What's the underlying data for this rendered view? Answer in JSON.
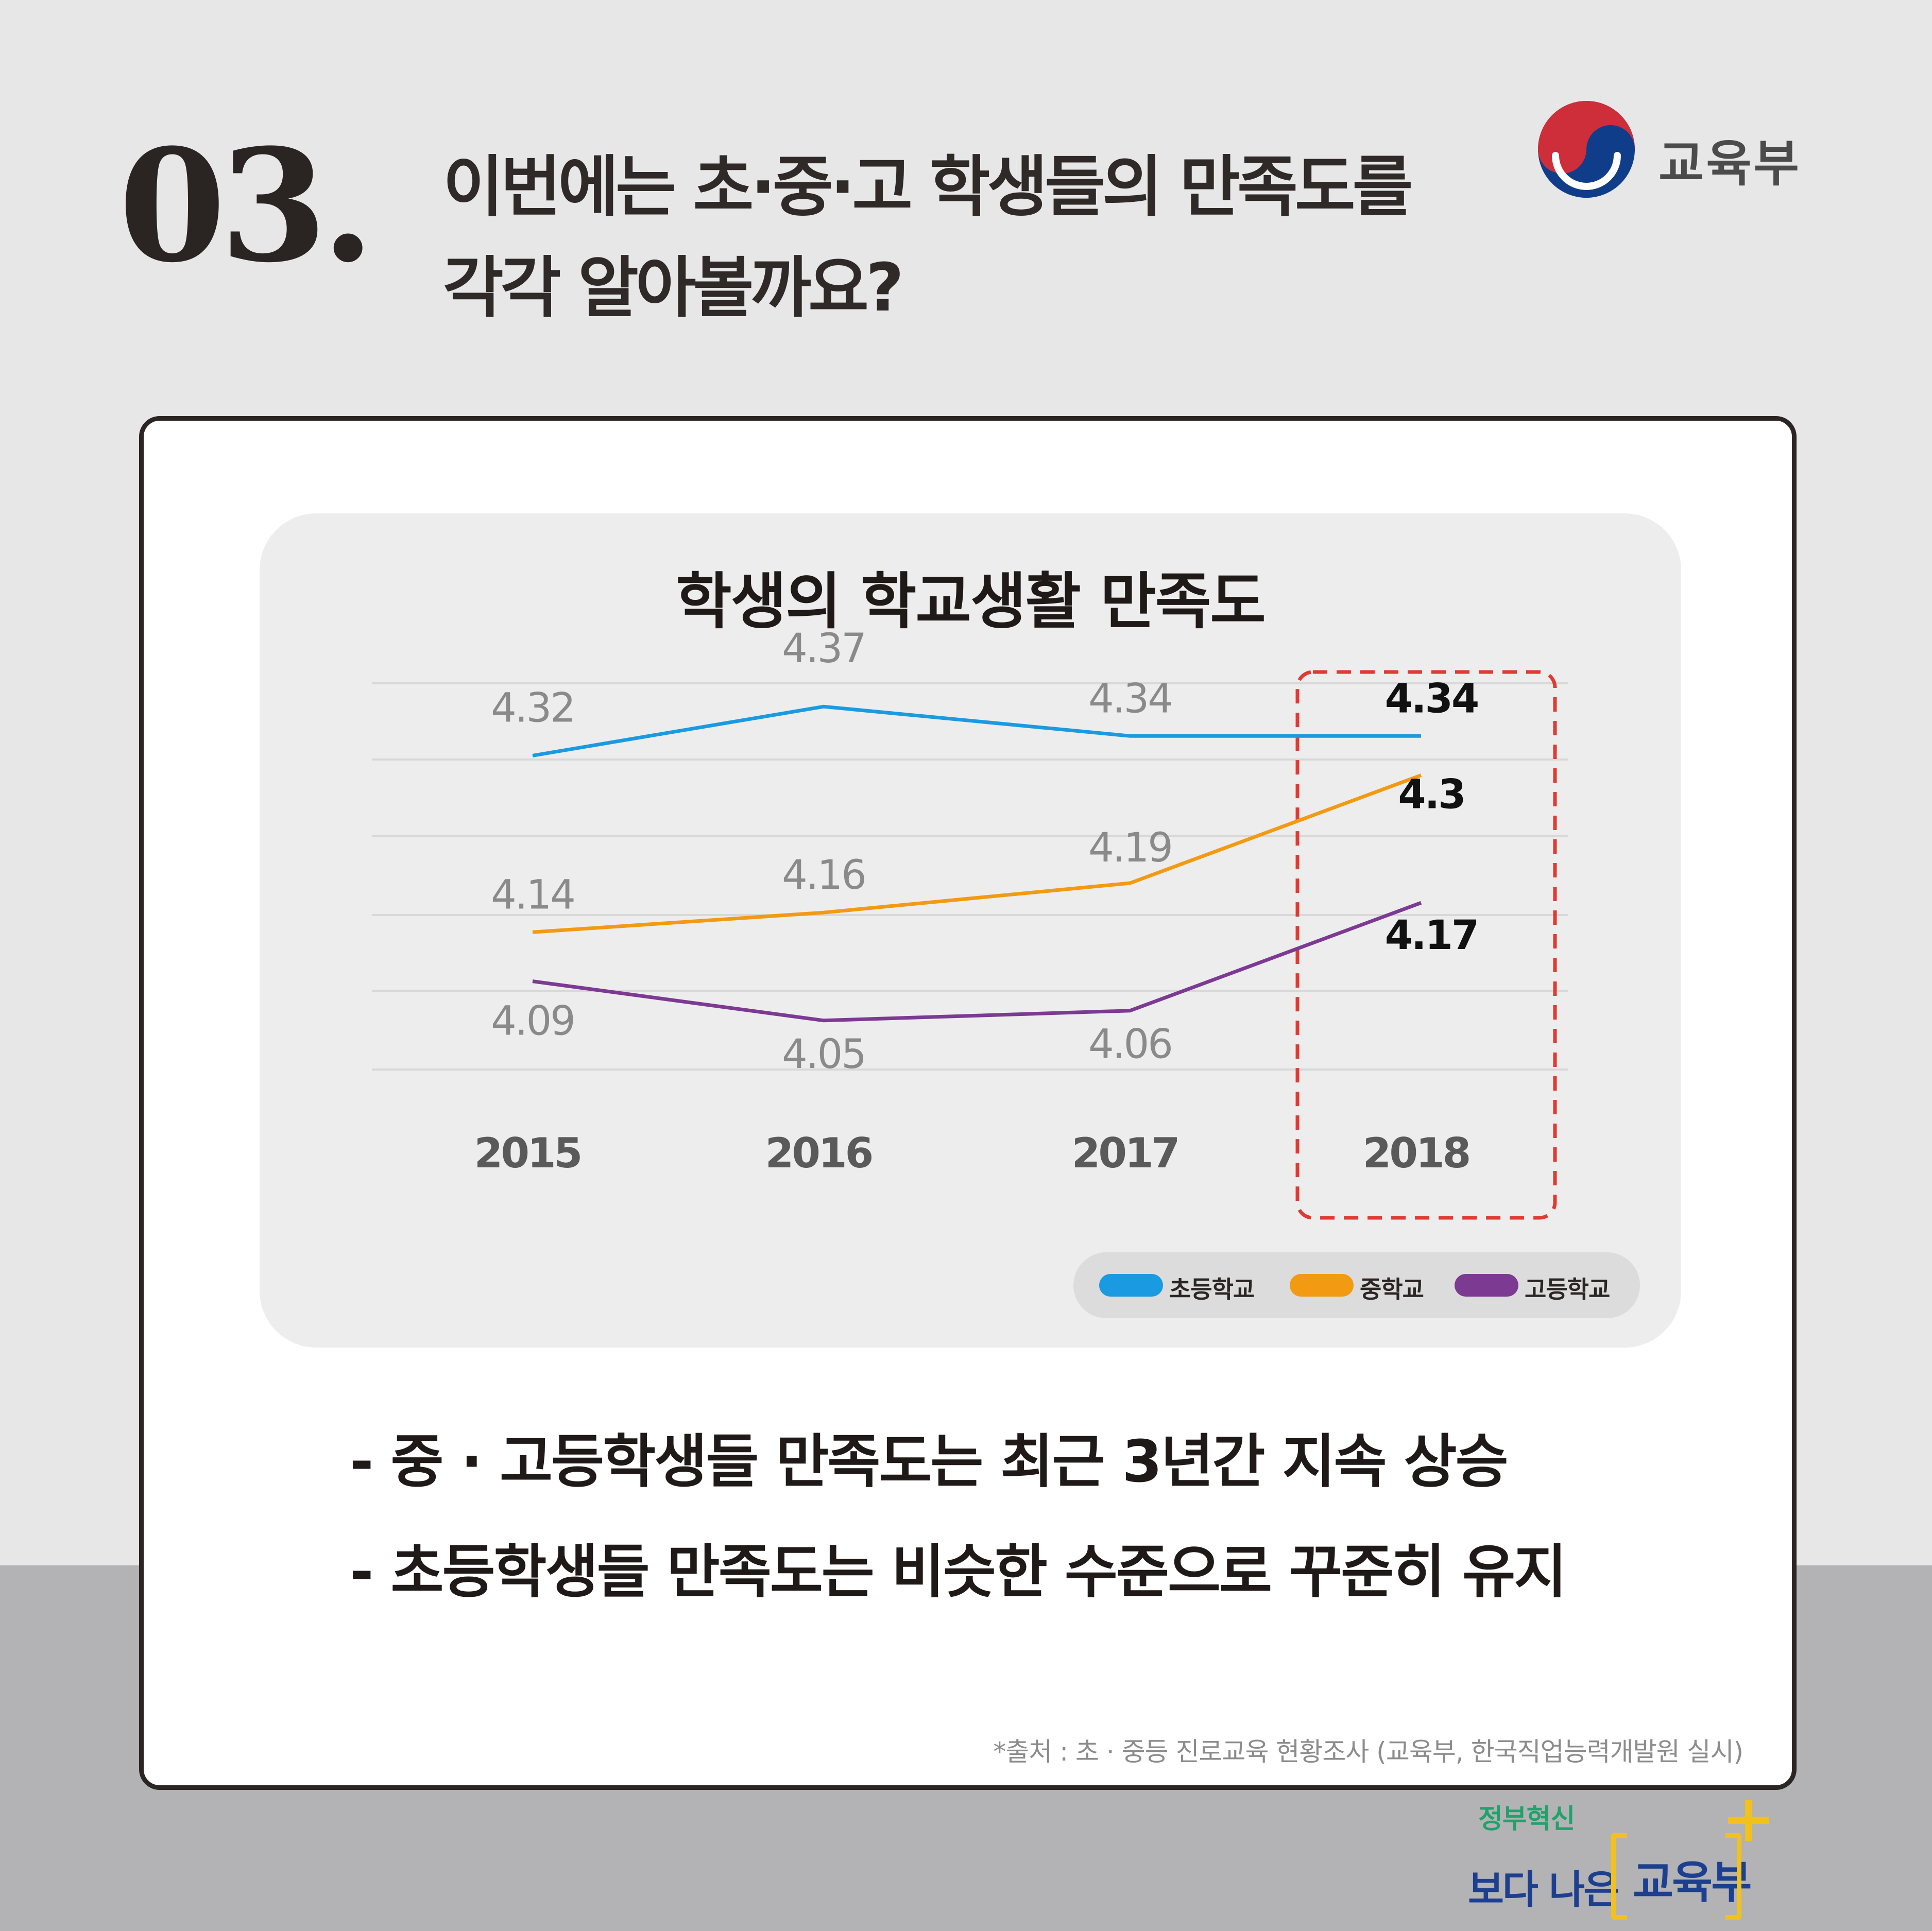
{
  "header": {
    "number": "03.",
    "headline_line1": "이번에는 초·중·고 학생들의 만족도를",
    "headline_line2": "각각 알아볼까요?"
  },
  "ministry": {
    "name": "교육부",
    "colors": {
      "red": "#cd2e3a",
      "blue": "#0f3d8a"
    }
  },
  "chart_data": {
    "type": "line",
    "title": "학생의 학교생활 만족도",
    "categories": [
      "2015",
      "2016",
      "2017",
      "2018"
    ],
    "series": [
      {
        "name": "초등학교",
        "color": "#1a9ae0",
        "values": [
          4.32,
          4.37,
          4.34,
          4.34
        ],
        "labels": [
          "4.32",
          "4.37",
          "4.34",
          "4.34"
        ]
      },
      {
        "name": "중학교",
        "color": "#f29a12",
        "values": [
          4.14,
          4.16,
          4.19,
          4.3
        ],
        "labels": [
          "4.14",
          "4.16",
          "4.19",
          "4.3"
        ]
      },
      {
        "name": "고등학교",
        "color": "#7c3a93",
        "values": [
          4.09,
          4.05,
          4.06,
          4.17
        ],
        "labels": [
          "4.09",
          "4.05",
          "4.06",
          "4.17"
        ]
      }
    ],
    "highlight": {
      "category": "2018",
      "border_color": "#e03b33",
      "style": "dashed"
    },
    "grid": true,
    "legend_position": "bottom-right",
    "xlabel": "",
    "ylabel": ""
  },
  "summary": {
    "bullet1": "- 중 · 고등학생들 만족도는 최근 3년간 지속 상승",
    "bullet2": "- 초등학생들 만족도는 비슷한 수준으로 꾸준히 유지"
  },
  "source": "*출처 : 초 · 중등 진로교육 현황조사 (교육부, 한국직업능력개발원 실시)",
  "footer": {
    "sub": "정부혁신",
    "main": "보다 나은",
    "ministry": "교육부",
    "colors": {
      "green": "#22a26b",
      "navy": "#1d3f8f",
      "yellow": "#f3c11d"
    }
  }
}
